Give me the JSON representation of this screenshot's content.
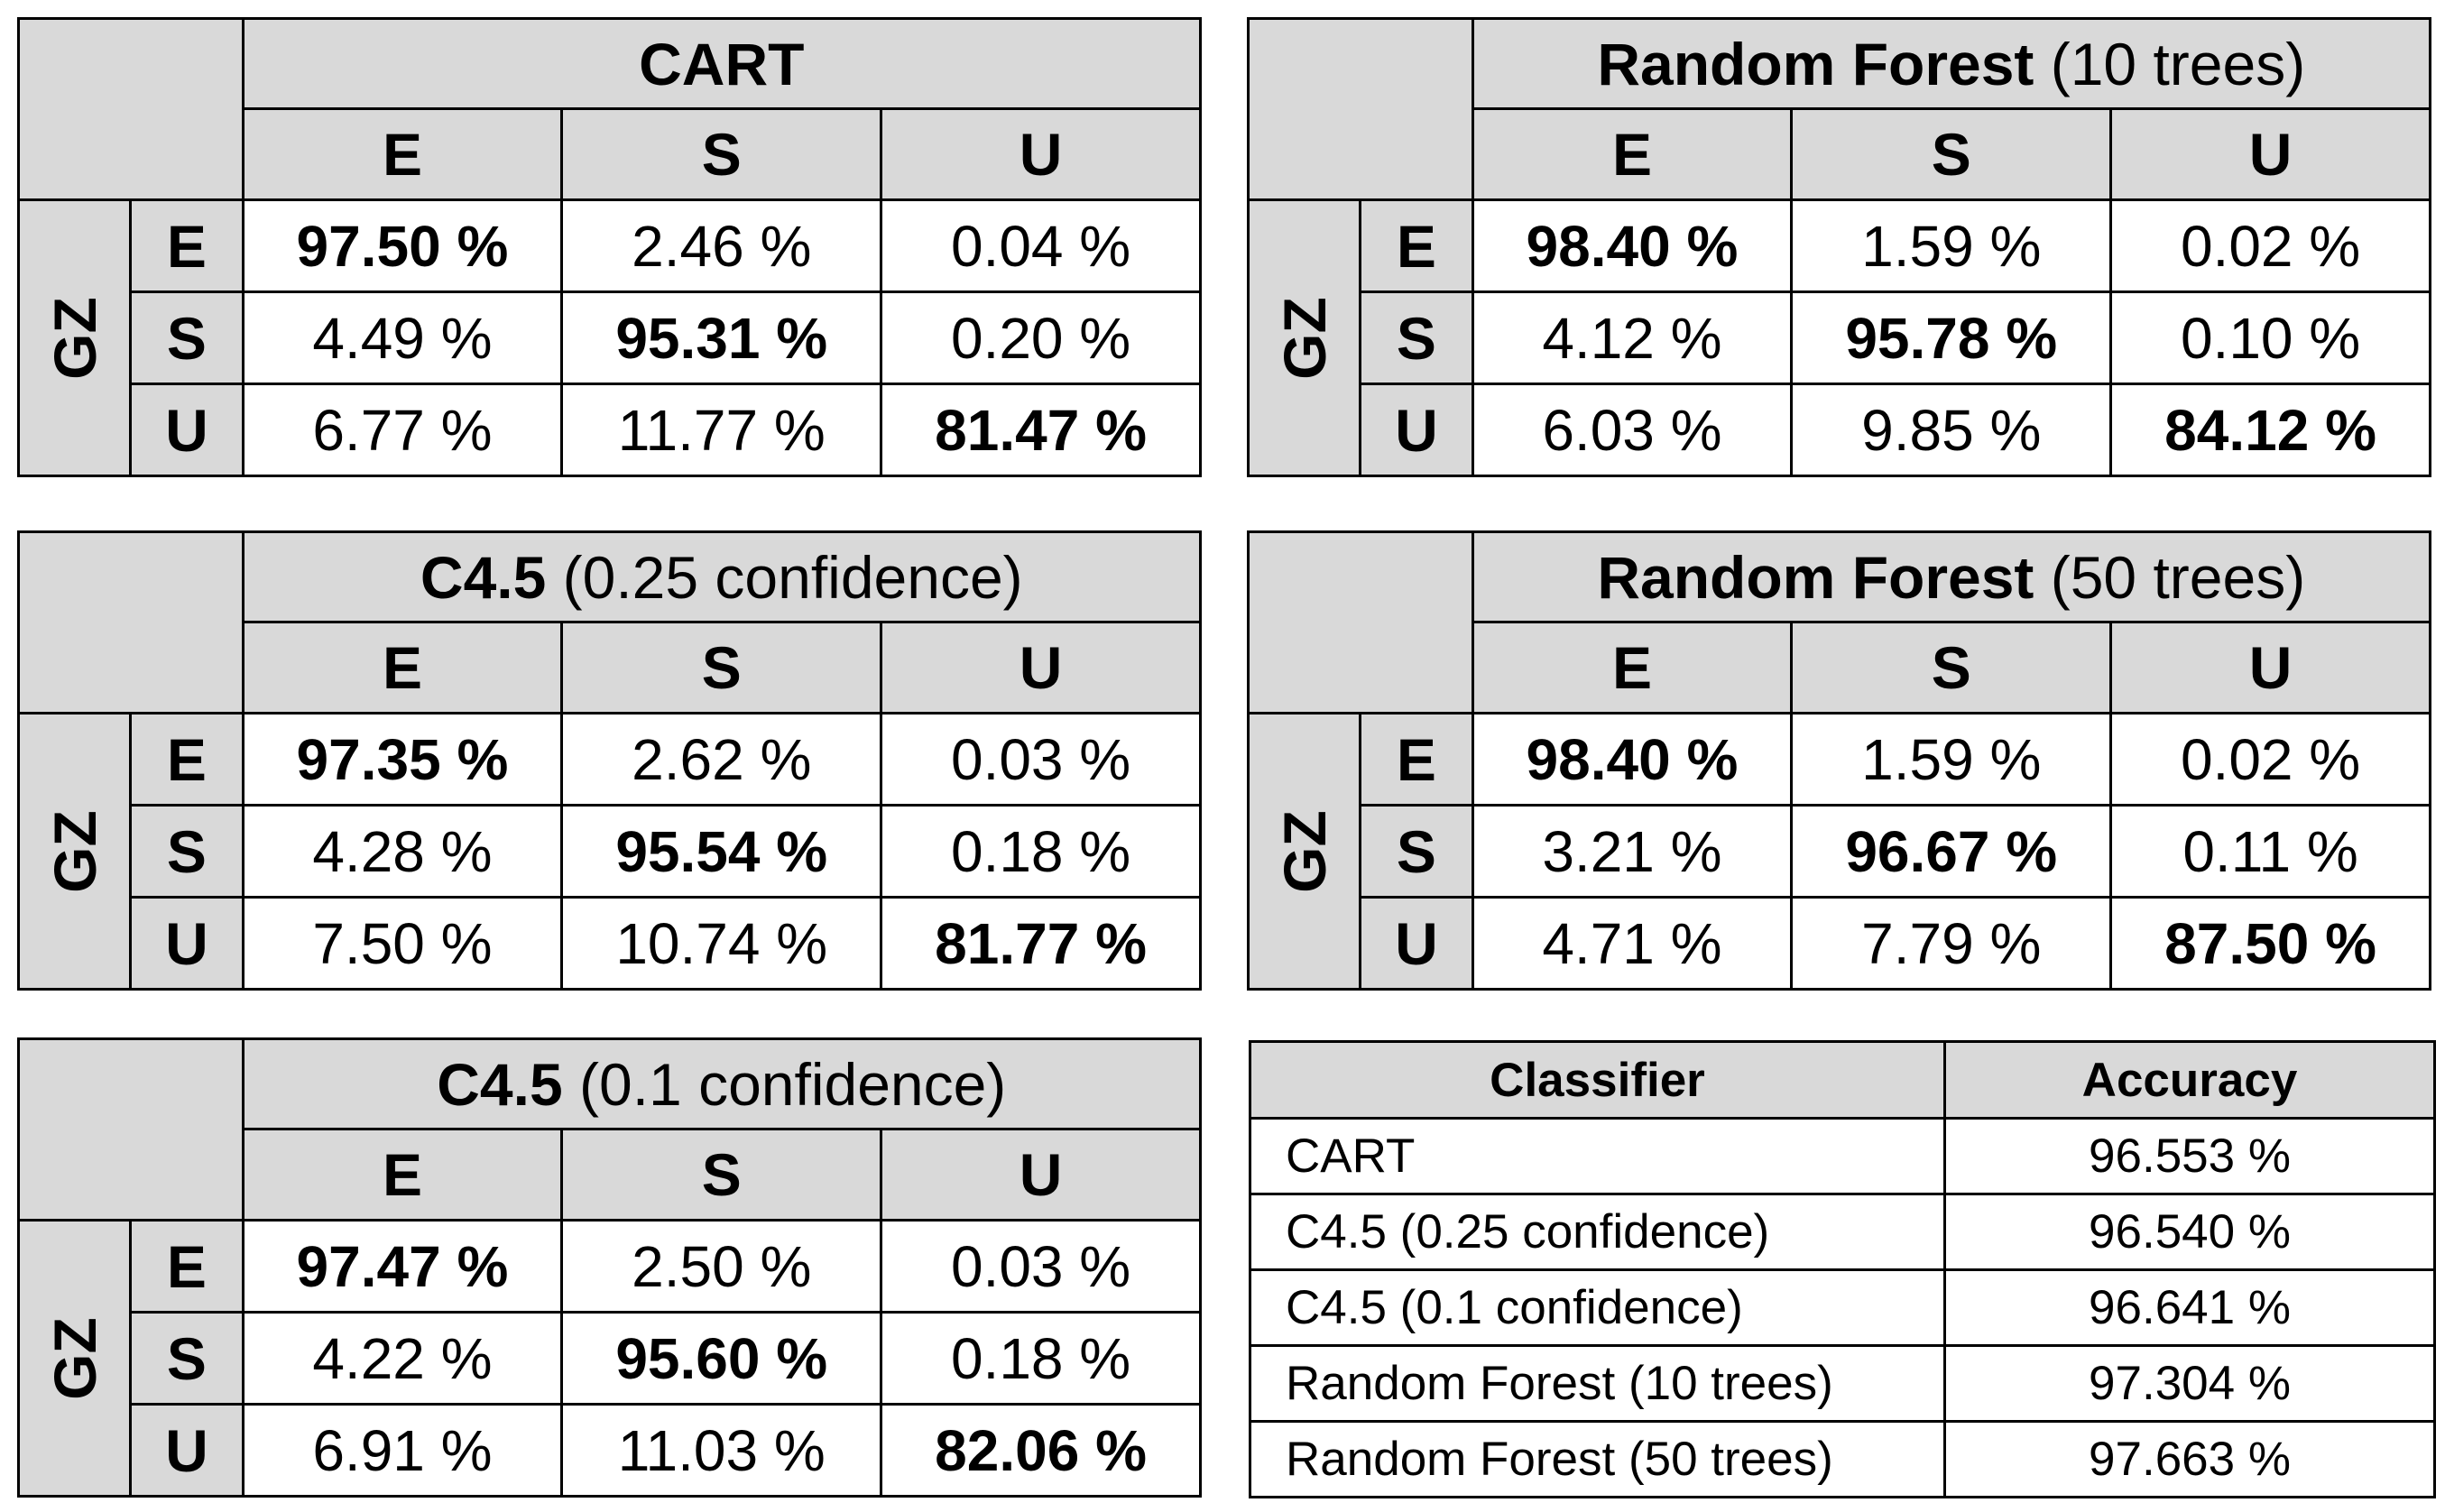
{
  "col_labels": [
    "E",
    "S",
    "U"
  ],
  "row_labels": [
    "E",
    "S",
    "U"
  ],
  "row_group_label": "GZ",
  "matrices": [
    {
      "title_bold": "CART",
      "title_rest": "",
      "rows": [
        [
          "97.50 %",
          "2.46 %",
          "0.04 %"
        ],
        [
          "4.49 %",
          "95.31 %",
          "0.20 %"
        ],
        [
          "6.77 %",
          "11.77 %",
          "81.47 %"
        ]
      ]
    },
    {
      "title_bold": "Random Forest",
      "title_rest": " (10 trees)",
      "rows": [
        [
          "98.40 %",
          "1.59 %",
          "0.02 %"
        ],
        [
          "4.12 %",
          "95.78 %",
          "0.10 %"
        ],
        [
          "6.03 %",
          "9.85 %",
          "84.12 %"
        ]
      ]
    },
    {
      "title_bold": "C4.5",
      "title_rest": " (0.25 confidence)",
      "rows": [
        [
          "97.35 %",
          "2.62 %",
          "0.03 %"
        ],
        [
          "4.28 %",
          "95.54 %",
          "0.18 %"
        ],
        [
          "7.50 %",
          "10.74 %",
          "81.77 %"
        ]
      ]
    },
    {
      "title_bold": "Random Forest",
      "title_rest": " (50 trees)",
      "rows": [
        [
          "98.40 %",
          "1.59 %",
          "0.02 %"
        ],
        [
          "3.21 %",
          "96.67 %",
          "0.11 %"
        ],
        [
          "4.71 %",
          "7.79 %",
          "87.50 %"
        ]
      ]
    },
    {
      "title_bold": "C4.5",
      "title_rest": " (0.1 confidence)",
      "rows": [
        [
          "97.47 %",
          "2.50 %",
          "0.03 %"
        ],
        [
          "4.22 %",
          "95.60 %",
          "0.18 %"
        ],
        [
          "6.91 %",
          "11.03 %",
          "82.06 %"
        ]
      ]
    }
  ],
  "accuracy_table": {
    "headers": [
      "Classifier",
      "Accuracy"
    ],
    "rows": [
      {
        "classifier": "CART",
        "accuracy": "96.553 %"
      },
      {
        "classifier": "C4.5 (0.25 confidence)",
        "accuracy": "96.540 %"
      },
      {
        "classifier": "C4.5 (0.1 confidence)",
        "accuracy": "96.641 %"
      },
      {
        "classifier": "Random Forest (10 trees)",
        "accuracy": "97.304 %"
      },
      {
        "classifier": "Random Forest (50 trees)",
        "accuracy": "97.663 %"
      }
    ]
  }
}
